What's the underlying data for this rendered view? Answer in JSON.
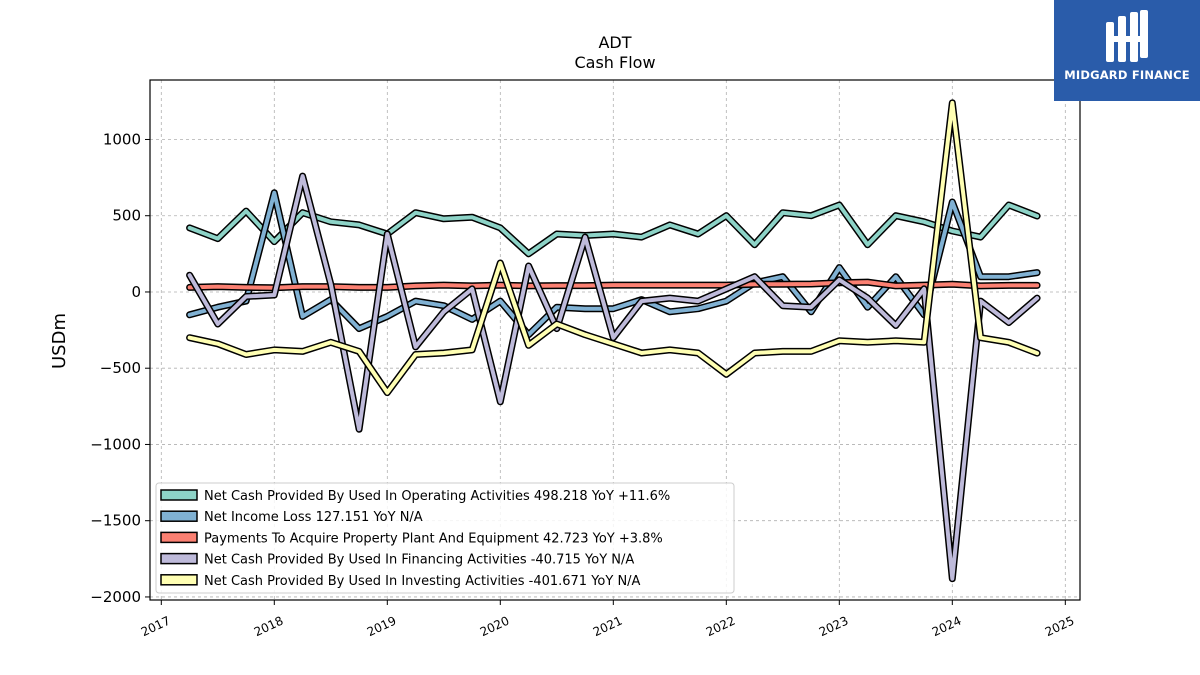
{
  "brand": {
    "name": "MIDGARD FINANCE",
    "bg_color": "#2a5caa",
    "icon": "mh-monogram-icon"
  },
  "chart_data": {
    "type": "line",
    "title": "ADT",
    "subtitle": "Cash Flow",
    "xlabel": "",
    "ylabel": "USDm",
    "xlim": [
      2016.9,
      2025.13
    ],
    "ylim": [
      -2020,
      1390
    ],
    "x_ticks": [
      2017,
      2018,
      2019,
      2020,
      2021,
      2022,
      2023,
      2024,
      2025
    ],
    "y_ticks": [
      1000,
      500,
      0,
      -500,
      -1000,
      -1500,
      -2000
    ],
    "y_tick_labels": [
      "1000",
      "500",
      "0",
      "−500",
      "−1000",
      "−1500",
      "−2000"
    ],
    "grid": true,
    "legend_position": "lower-left",
    "x": [
      2017.25,
      2017.5,
      2017.75,
      2018.0,
      2018.25,
      2018.5,
      2018.75,
      2019.0,
      2019.25,
      2019.5,
      2019.75,
      2020.0,
      2020.25,
      2020.5,
      2020.75,
      2021.0,
      2021.25,
      2021.5,
      2021.75,
      2022.0,
      2022.25,
      2022.5,
      2022.75,
      2023.0,
      2023.25,
      2023.5,
      2023.75,
      2024.0,
      2024.25,
      2024.5,
      2024.75
    ],
    "series": [
      {
        "name": "Net Cash Provided By Used In Operating Activities",
        "legend": "Net Cash Provided By Used In Operating Activities  498.218 YoY +11.6%",
        "color": "#8dd3c7",
        "values": [
          420,
          350,
          530,
          330,
          520,
          460,
          440,
          380,
          520,
          480,
          490,
          420,
          250,
          380,
          370,
          380,
          360,
          440,
          380,
          500,
          310,
          520,
          500,
          570,
          310,
          500,
          460,
          400,
          360,
          570,
          498
        ]
      },
      {
        "name": "Net Income Loss",
        "legend": "Net Income Loss  127.151 YoY N/A",
        "color": "#80b1d3",
        "values": [
          -150,
          -100,
          -60,
          650,
          -160,
          -50,
          -240,
          -160,
          -60,
          -90,
          -180,
          -60,
          -280,
          -100,
          -110,
          -110,
          -50,
          -130,
          -110,
          -60,
          60,
          100,
          -130,
          160,
          -100,
          100,
          -150,
          590,
          100,
          100,
          127
        ]
      },
      {
        "name": "Payments To Acquire Property Plant And Equipment",
        "legend": "Payments To Acquire Property Plant And Equipment  42.723 YoY +3.8%",
        "color": "#fb8072",
        "values": [
          30,
          35,
          30,
          28,
          35,
          35,
          30,
          30,
          40,
          45,
          40,
          45,
          40,
          42,
          42,
          45,
          45,
          45,
          45,
          45,
          50,
          50,
          52,
          60,
          65,
          40,
          45,
          50,
          40,
          43,
          43
        ]
      },
      {
        "name": "Net Cash Provided By Used In Financing Activities",
        "legend": "Net Cash Provided By Used In Financing Activities  -40.715 YoY N/A",
        "color": "#bebada",
        "values": [
          110,
          -210,
          -30,
          -20,
          760,
          50,
          -900,
          380,
          -360,
          -130,
          20,
          -720,
          170,
          -240,
          360,
          -300,
          -60,
          -40,
          -60,
          20,
          100,
          -90,
          -100,
          80,
          -40,
          -220,
          20,
          -1880,
          -60,
          -200,
          -40
        ]
      },
      {
        "name": "Net Cash Provided By Used In Investing Activities",
        "legend": "Net Cash Provided By Used In Investing Activities  -401.671 YoY N/A",
        "color": "#ffffb3",
        "values": [
          -300,
          -340,
          -410,
          -380,
          -390,
          -330,
          -390,
          -660,
          -410,
          -400,
          -380,
          190,
          -350,
          -210,
          -280,
          -340,
          -400,
          -380,
          -400,
          -540,
          -400,
          -390,
          -390,
          -320,
          -330,
          -320,
          -330,
          1240,
          -300,
          -330,
          -401
        ]
      }
    ]
  }
}
